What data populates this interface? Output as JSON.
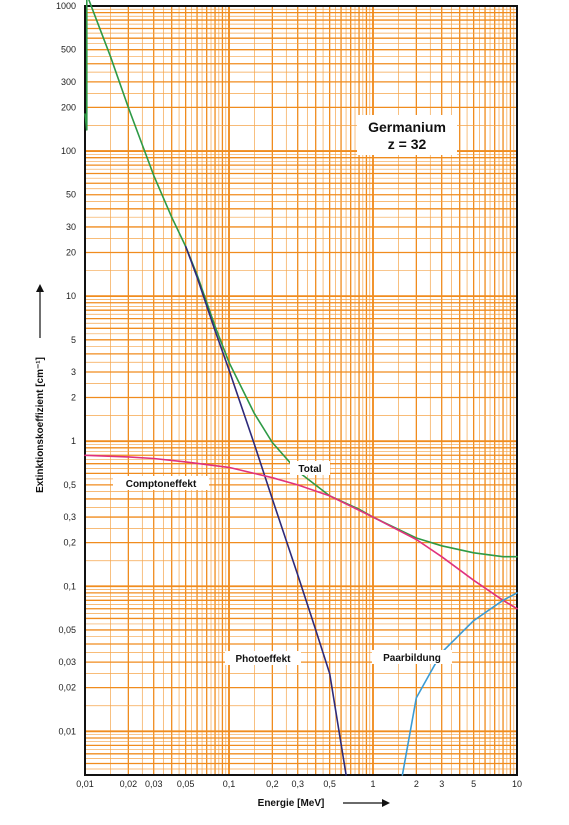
{
  "chart_data": {
    "type": "line",
    "title": "Germanium",
    "subtitle": "z = 32",
    "xlabel": "Energie [MeV]",
    "ylabel": "Extinktionskoeffizient [cm⁻¹]",
    "x_scale": "log",
    "y_scale": "log",
    "xlim": [
      0.01,
      10
    ],
    "ylim": [
      0.005,
      1000
    ],
    "grid": true,
    "x_ticks": [
      {
        "value": 0.01,
        "label": "0,01"
      },
      {
        "value": 0.02,
        "label": "0,02"
      },
      {
        "value": 0.03,
        "label": "0,03"
      },
      {
        "value": 0.05,
        "label": "0,05"
      },
      {
        "value": 0.1,
        "label": "0,1"
      },
      {
        "value": 0.2,
        "label": "0,2"
      },
      {
        "value": 0.3,
        "label": "0,3"
      },
      {
        "value": 0.5,
        "label": "0,5"
      },
      {
        "value": 1,
        "label": "1"
      },
      {
        "value": 2,
        "label": "2"
      },
      {
        "value": 3,
        "label": "3"
      },
      {
        "value": 5,
        "label": "5"
      },
      {
        "value": 10,
        "label": "10"
      }
    ],
    "y_ticks": [
      {
        "value": 1000,
        "label": "1000"
      },
      {
        "value": 500,
        "label": "500"
      },
      {
        "value": 300,
        "label": "300"
      },
      {
        "value": 200,
        "label": "200"
      },
      {
        "value": 100,
        "label": "100"
      },
      {
        "value": 50,
        "label": "50"
      },
      {
        "value": 30,
        "label": "30"
      },
      {
        "value": 20,
        "label": "20"
      },
      {
        "value": 10,
        "label": "10"
      },
      {
        "value": 5,
        "label": "5"
      },
      {
        "value": 3,
        "label": "3"
      },
      {
        "value": 2,
        "label": "2"
      },
      {
        "value": 1,
        "label": "1"
      },
      {
        "value": 0.5,
        "label": "0,5"
      },
      {
        "value": 0.3,
        "label": "0,3"
      },
      {
        "value": 0.2,
        "label": "0,2"
      },
      {
        "value": 0.1,
        "label": "0,1"
      },
      {
        "value": 0.05,
        "label": "0,05"
      },
      {
        "value": 0.03,
        "label": "0,03"
      },
      {
        "value": 0.02,
        "label": "0,02"
      },
      {
        "value": 0.01,
        "label": "0,01"
      }
    ],
    "series": [
      {
        "name": "Total",
        "color": "#2e9a46",
        "points": [
          [
            0.01,
            180
          ],
          [
            0.0103,
            140
          ],
          [
            0.0103,
            1200
          ],
          [
            0.015,
            450
          ],
          [
            0.02,
            200
          ],
          [
            0.03,
            68
          ],
          [
            0.04,
            35
          ],
          [
            0.05,
            22
          ],
          [
            0.06,
            14
          ],
          [
            0.08,
            6.2
          ],
          [
            0.1,
            3.5
          ],
          [
            0.15,
            1.55
          ],
          [
            0.2,
            0.98
          ],
          [
            0.3,
            0.62
          ],
          [
            0.5,
            0.42
          ],
          [
            0.8,
            0.34
          ],
          [
            1,
            0.3
          ],
          [
            2,
            0.215
          ],
          [
            3,
            0.19
          ],
          [
            5,
            0.17
          ],
          [
            8,
            0.16
          ],
          [
            10,
            0.16
          ]
        ]
      },
      {
        "name": "Photoeffekt",
        "color": "#2e2a7a",
        "points": [
          [
            0.05,
            22
          ],
          [
            0.06,
            13.5
          ],
          [
            0.08,
            5.8
          ],
          [
            0.1,
            3.1
          ],
          [
            0.15,
            0.95
          ],
          [
            0.2,
            0.4
          ],
          [
            0.3,
            0.12
          ],
          [
            0.4,
            0.05
          ],
          [
            0.5,
            0.025
          ],
          [
            0.65,
            0.005
          ]
        ]
      },
      {
        "name": "Comptoneffekt",
        "color": "#e0327d",
        "points": [
          [
            0.01,
            0.8
          ],
          [
            0.02,
            0.78
          ],
          [
            0.03,
            0.76
          ],
          [
            0.05,
            0.72
          ],
          [
            0.1,
            0.66
          ],
          [
            0.2,
            0.56
          ],
          [
            0.3,
            0.5
          ],
          [
            0.5,
            0.42
          ],
          [
            1,
            0.3
          ],
          [
            2,
            0.21
          ],
          [
            3,
            0.16
          ],
          [
            5,
            0.11
          ],
          [
            8,
            0.08
          ],
          [
            10,
            0.07
          ]
        ]
      },
      {
        "name": "Paarbildung",
        "color": "#3a9bd4",
        "points": [
          [
            1.6,
            0.005
          ],
          [
            2,
            0.017
          ],
          [
            3,
            0.035
          ],
          [
            5,
            0.058
          ],
          [
            8,
            0.08
          ],
          [
            10,
            0.09
          ]
        ]
      }
    ],
    "labels": {
      "total": "Total",
      "compton": "Comptoneffekt",
      "photo": "Photoeffekt",
      "pair": "Paarbildung"
    }
  },
  "colors": {
    "grid_major": "#f08c1e",
    "grid_minor": "#f5a54b",
    "frame": "#111111"
  }
}
